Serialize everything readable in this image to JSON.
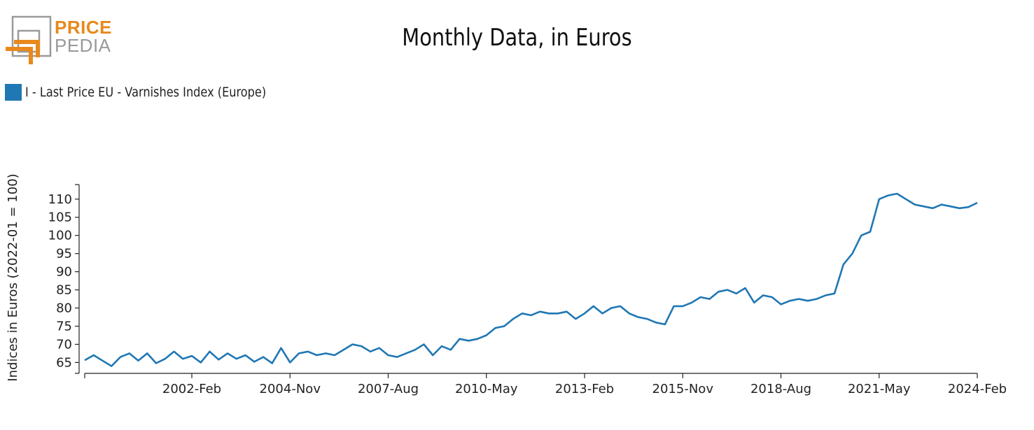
{
  "brand": {
    "top": "PRICE",
    "bottom": "PEDIA",
    "colors": {
      "orange": "#e8891c",
      "gray": "#9a9a9a"
    }
  },
  "chart_data": {
    "type": "line",
    "title": "Monthly Data, in Euros",
    "ylabel": "Indices in Euros (2022-01 = 100)",
    "xlabel": "",
    "ylim": [
      62,
      114
    ],
    "yticks": [
      65,
      70,
      75,
      80,
      85,
      90,
      95,
      100,
      105,
      110
    ],
    "xticks": [
      "2002-Feb",
      "2004-Nov",
      "2007-Aug",
      "2010-May",
      "2013-Feb",
      "2015-Nov",
      "2018-Aug",
      "2021-May",
      "2024-Feb"
    ],
    "x_start": "1999-Feb",
    "x_end": "2024-Feb",
    "legend": "top-left",
    "series": [
      {
        "name": "I - Last Price EU - Varnishes Index (Europe)",
        "color": "#1f77b4",
        "x": [
          "1999-Feb",
          "1999-May",
          "1999-Aug",
          "1999-Nov",
          "2000-Feb",
          "2000-May",
          "2000-Aug",
          "2000-Nov",
          "2001-Feb",
          "2001-May",
          "2001-Aug",
          "2001-Nov",
          "2002-Feb",
          "2002-May",
          "2002-Aug",
          "2002-Nov",
          "2003-Feb",
          "2003-May",
          "2003-Aug",
          "2003-Nov",
          "2004-Feb",
          "2004-May",
          "2004-Aug",
          "2004-Nov",
          "2005-Feb",
          "2005-May",
          "2005-Aug",
          "2005-Nov",
          "2006-Feb",
          "2006-May",
          "2006-Aug",
          "2006-Nov",
          "2007-Feb",
          "2007-May",
          "2007-Aug",
          "2007-Nov",
          "2008-Feb",
          "2008-May",
          "2008-Aug",
          "2008-Nov",
          "2009-Feb",
          "2009-May",
          "2009-Aug",
          "2009-Nov",
          "2010-Feb",
          "2010-May",
          "2010-Aug",
          "2010-Nov",
          "2011-Feb",
          "2011-May",
          "2011-Aug",
          "2011-Nov",
          "2012-Feb",
          "2012-May",
          "2012-Aug",
          "2012-Nov",
          "2013-Feb",
          "2013-May",
          "2013-Aug",
          "2013-Nov",
          "2014-Feb",
          "2014-May",
          "2014-Aug",
          "2014-Nov",
          "2015-Feb",
          "2015-May",
          "2015-Aug",
          "2015-Nov",
          "2016-Feb",
          "2016-May",
          "2016-Aug",
          "2016-Nov",
          "2017-Feb",
          "2017-May",
          "2017-Aug",
          "2017-Nov",
          "2018-Feb",
          "2018-May",
          "2018-Aug",
          "2018-Nov",
          "2019-Feb",
          "2019-May",
          "2019-Aug",
          "2019-Nov",
          "2020-Feb",
          "2020-May",
          "2020-Aug",
          "2020-Nov",
          "2021-Feb",
          "2021-May",
          "2021-Aug",
          "2021-Nov",
          "2022-Feb",
          "2022-May",
          "2022-Aug",
          "2022-Nov",
          "2023-Feb",
          "2023-May",
          "2023-Aug",
          "2023-Nov",
          "2024-Feb"
        ],
        "values": [
          65.6,
          67.0,
          65.5,
          64.0,
          66.5,
          67.5,
          65.5,
          67.5,
          64.8,
          66.0,
          68.0,
          66.0,
          66.8,
          65.0,
          68.0,
          65.8,
          67.5,
          66.0,
          67.0,
          65.2,
          66.5,
          64.8,
          69.0,
          65.0,
          67.5,
          68.0,
          67.0,
          67.5,
          67.0,
          68.5,
          70.0,
          69.5,
          68.0,
          69.0,
          67.0,
          66.5,
          67.5,
          68.5,
          70.0,
          67.0,
          69.5,
          68.5,
          71.5,
          71.0,
          71.5,
          72.5,
          74.5,
          75.0,
          77.0,
          78.5,
          78.0,
          79.0,
          78.5,
          78.5,
          79.0,
          77.0,
          78.5,
          80.5,
          78.5,
          80.0,
          80.5,
          78.5,
          77.5,
          77.0,
          76.0,
          75.5,
          80.5,
          80.5,
          81.5,
          83.0,
          82.5,
          84.5,
          85.0,
          84.0,
          85.5,
          81.5,
          83.5,
          83.0,
          81.0,
          82.0,
          82.5,
          82.0,
          82.5,
          83.5,
          84.0,
          92.0,
          95.0,
          100.0,
          101.0,
          110.0,
          111.0,
          111.5,
          110.0,
          108.5,
          108.0,
          107.5,
          108.5,
          108.0,
          107.5,
          107.8,
          109.0
        ]
      }
    ]
  }
}
